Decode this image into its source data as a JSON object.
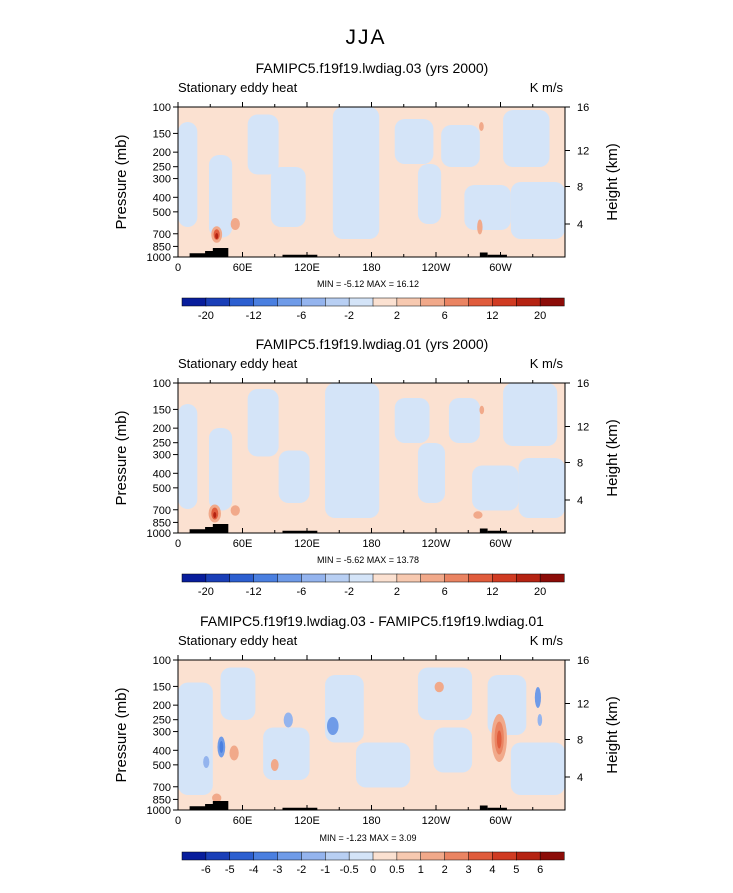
{
  "page_title": "JJA",
  "chart_data": [
    {
      "type": "heatmap",
      "title": "FAMIPC5.f19f19.lwdiag.03 (yrs 2000)",
      "left_label": "Stationary eddy heat",
      "right_label": "K m/s",
      "ylabel": "Pressure (mb)",
      "ylabel_right": "Height (km)",
      "x_ticks": [
        "0",
        "60E",
        "120E",
        "180",
        "120W",
        "60W"
      ],
      "y_ticks": [
        "100",
        "150",
        "200",
        "250",
        "300",
        "400",
        "500",
        "700",
        "850",
        "1000"
      ],
      "y_ticks_right": [
        "16",
        "12",
        "8",
        "4"
      ],
      "min_max_text": "MIN = -5.12   MAX = 16.12",
      "colorbar_labels": [
        "-20",
        "-12",
        "-6",
        "-2",
        "2",
        "6",
        "12",
        "20"
      ],
      "colorbar_colors": [
        "#081d9c",
        "#1a3fb8",
        "#2c5fd0",
        "#4a7fe0",
        "#6f9be8",
        "#94b4ee",
        "#b8cff3",
        "#d4e4f8",
        "#fbe1d1",
        "#f7c9b0",
        "#f1a98a",
        "#ea8462",
        "#e05c3c",
        "#d03b22",
        "#b52312",
        "#8c0c08"
      ]
    },
    {
      "type": "heatmap",
      "title": "FAMIPC5.f19f19.lwdiag.01 (yrs 2000)",
      "left_label": "Stationary eddy heat",
      "right_label": "K m/s",
      "ylabel": "Pressure (mb)",
      "ylabel_right": "Height (km)",
      "x_ticks": [
        "0",
        "60E",
        "120E",
        "180",
        "120W",
        "60W"
      ],
      "y_ticks": [
        "100",
        "150",
        "200",
        "250",
        "300",
        "400",
        "500",
        "700",
        "850",
        "1000"
      ],
      "y_ticks_right": [
        "16",
        "12",
        "8",
        "4"
      ],
      "min_max_text": "MIN = -5.62   MAX = 13.78",
      "colorbar_labels": [
        "-20",
        "-12",
        "-6",
        "-2",
        "2",
        "6",
        "12",
        "20"
      ],
      "colorbar_colors": [
        "#081d9c",
        "#1a3fb8",
        "#2c5fd0",
        "#4a7fe0",
        "#6f9be8",
        "#94b4ee",
        "#b8cff3",
        "#d4e4f8",
        "#fbe1d1",
        "#f7c9b0",
        "#f1a98a",
        "#ea8462",
        "#e05c3c",
        "#d03b22",
        "#b52312",
        "#8c0c08"
      ]
    },
    {
      "type": "heatmap",
      "title": "FAMIPC5.f19f19.lwdiag.03 - FAMIPC5.f19f19.lwdiag.01",
      "left_label": "Stationary eddy heat",
      "right_label": "K m/s",
      "ylabel": "Pressure (mb)",
      "ylabel_right": "Height (km)",
      "x_ticks": [
        "0",
        "60E",
        "120E",
        "180",
        "120W",
        "60W"
      ],
      "y_ticks": [
        "100",
        "150",
        "200",
        "250",
        "300",
        "400",
        "500",
        "700",
        "850",
        "1000"
      ],
      "y_ticks_right": [
        "16",
        "12",
        "8",
        "4"
      ],
      "min_max_text": "MIN = -1.23   MAX = 3.09",
      "colorbar_labels": [
        "-6",
        "-5",
        "-4",
        "-3",
        "-2",
        "-1",
        "-0.5",
        "0",
        "0.5",
        "1",
        "2",
        "3",
        "4",
        "5",
        "6"
      ],
      "colorbar_colors": [
        "#081d9c",
        "#1a3fb8",
        "#2c5fd0",
        "#4a7fe0",
        "#6f9be8",
        "#94b4ee",
        "#b8cff3",
        "#d4e4f8",
        "#fbe1d1",
        "#f7c9b0",
        "#f1a98a",
        "#ea8462",
        "#e05c3c",
        "#d03b22",
        "#b52312",
        "#8c0c08"
      ]
    }
  ]
}
